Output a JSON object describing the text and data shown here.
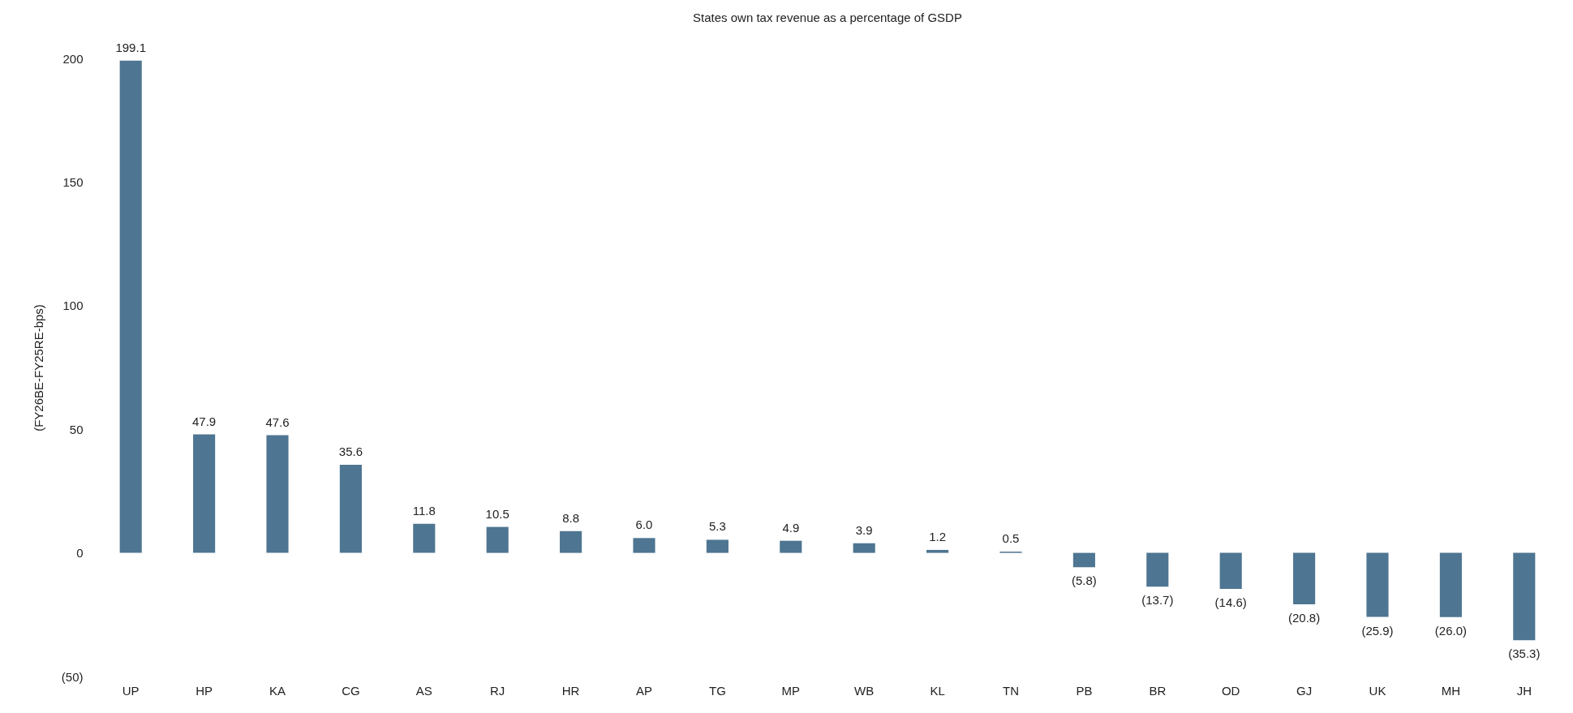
{
  "chart_data": {
    "type": "bar",
    "title": "States own tax revenue as a percentage of GSDP",
    "ylabel": "(FY26BE-FY25RE-bps)",
    "categories": [
      "UP",
      "HP",
      "KA",
      "CG",
      "AS",
      "RJ",
      "HR",
      "AP",
      "TG",
      "MP",
      "WB",
      "KL",
      "TN",
      "PB",
      "BR",
      "OD",
      "GJ",
      "UK",
      "MH",
      "JH"
    ],
    "values": [
      199.1,
      47.9,
      47.6,
      35.6,
      11.8,
      10.5,
      8.8,
      6.0,
      5.3,
      4.9,
      3.9,
      1.2,
      0.5,
      -5.8,
      -13.7,
      -14.6,
      -20.8,
      -25.9,
      -26.0,
      -35.3
    ],
    "value_labels": [
      "199.1",
      "47.9",
      "47.6",
      "35.6",
      "11.8",
      "10.5",
      "8.8",
      "6.0",
      "5.3",
      "4.9",
      "3.9",
      "1.2",
      "0.5",
      "(5.8)",
      "(13.7)",
      "(14.6)",
      "(20.8)",
      "(25.9)",
      "(26.0)",
      "(35.3)"
    ],
    "color": "#4e7591",
    "ylim": [
      -50,
      200
    ],
    "yticks": [
      {
        "value": -50,
        "label": "(50)"
      },
      0,
      50,
      100,
      150,
      200
    ],
    "grid": false
  }
}
